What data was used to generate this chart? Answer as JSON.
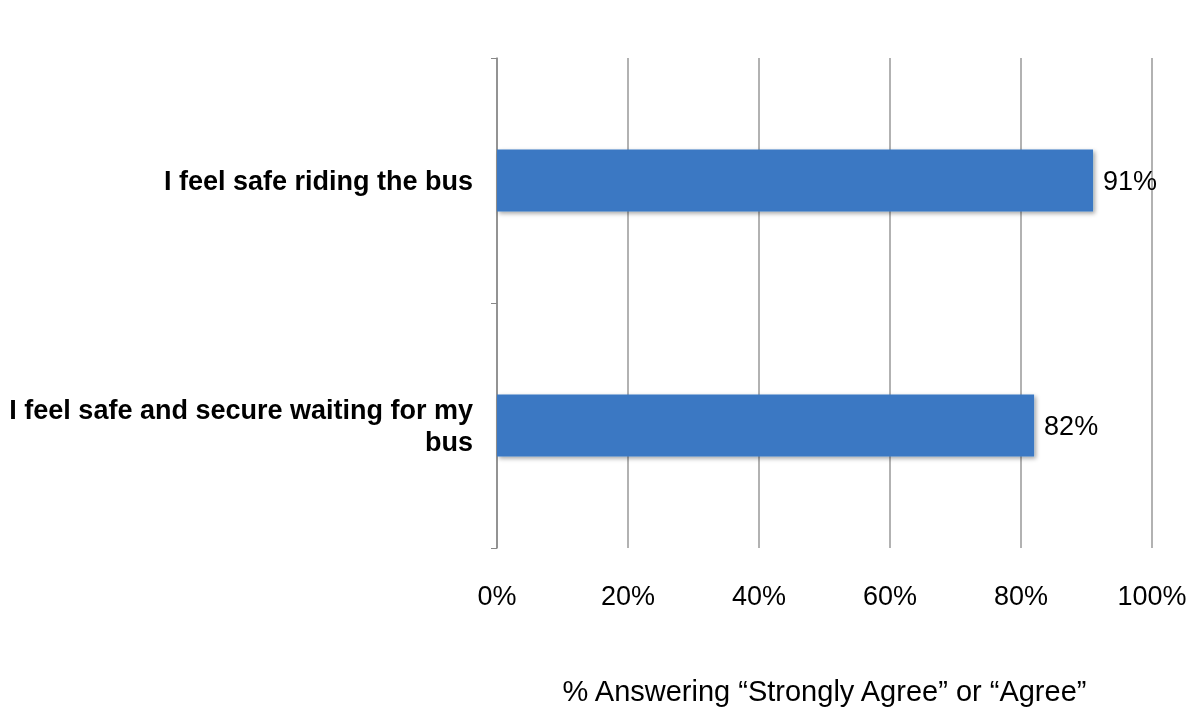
{
  "chart_data": {
    "type": "bar",
    "orientation": "horizontal",
    "categories": [
      "I feel safe riding the bus",
      "I feel safe and secure waiting for my bus"
    ],
    "values": [
      91,
      82
    ],
    "color": "#3a78c3",
    "value_labels": [
      "91%",
      "82%"
    ],
    "xlabel": "% Answering “Strongly Agree” or “Agree”",
    "xlim": [
      0,
      100
    ],
    "xticks": [
      {
        "value": 0,
        "label": "0%"
      },
      {
        "value": 20,
        "label": "20%"
      },
      {
        "value": 40,
        "label": "40%"
      },
      {
        "value": 60,
        "label": "60%"
      },
      {
        "value": 80,
        "label": "80%"
      },
      {
        "value": 100,
        "label": "100%"
      }
    ],
    "grid": "x"
  }
}
